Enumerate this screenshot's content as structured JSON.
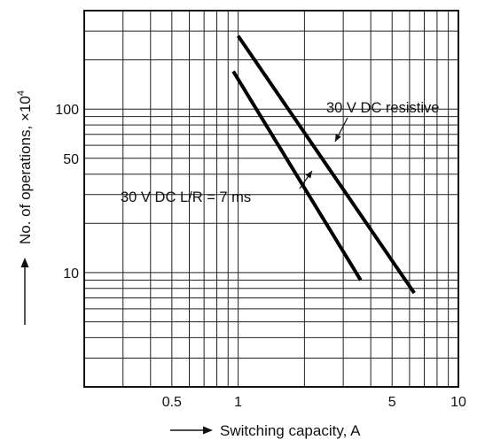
{
  "chart_data": {
    "type": "line",
    "title": "",
    "xlabel": "Switching capacity, A",
    "ylabel": "No. of operations, ×10",
    "ylabel_exponent": "4",
    "x_scale": "log",
    "y_scale": "log",
    "xlim": [
      0.2,
      10
    ],
    "ylim": [
      2,
      400
    ],
    "grid": true,
    "x_ticks": [
      {
        "value": 0.5,
        "label": "0.5"
      },
      {
        "value": 1,
        "label": "1"
      },
      {
        "value": 5,
        "label": "5"
      },
      {
        "value": 10,
        "label": "10"
      }
    ],
    "y_ticks": [
      {
        "value": 10,
        "label": "10"
      },
      {
        "value": 50,
        "label": "50"
      },
      {
        "value": 100,
        "label": "100"
      }
    ],
    "series": [
      {
        "name": "30 V DC resistive",
        "points": [
          [
            1.0,
            280
          ],
          [
            6.3,
            7.5
          ]
        ]
      },
      {
        "name": "30 V DC L/R = 7 ms",
        "points": [
          [
            0.95,
            170
          ],
          [
            3.6,
            9
          ]
        ]
      }
    ],
    "annotations": [
      {
        "text": "30 V DC resistive",
        "series": 0
      },
      {
        "text": "30 V DC L/R = 7 ms",
        "series": 1
      }
    ]
  }
}
